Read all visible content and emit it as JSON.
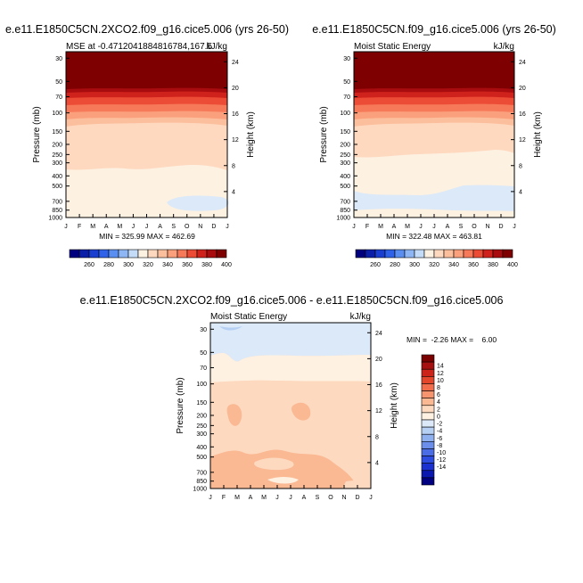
{
  "chart_data": [
    {
      "type": "heatmap",
      "title": "e.e11.E1850C5CN.2XCO2.f09_g16.cice5.006 (yrs 26-50)",
      "subtitle_left": "MSE at -0.4712041884816784,167.5",
      "subtitle_right": "kJ/kg",
      "ylabel": "Pressure (mb)",
      "ylabel_right": "Height (km)",
      "x_ticks": [
        "J",
        "F",
        "M",
        "A",
        "M",
        "J",
        "J",
        "A",
        "S",
        "O",
        "N",
        "D",
        "J"
      ],
      "y_ticks": [
        "30",
        "50",
        "70",
        "100",
        "150",
        "200",
        "250",
        "300",
        "400",
        "500",
        "700",
        "850",
        "1000"
      ],
      "height_ticks": [
        "24",
        "20",
        "16",
        "12",
        "8",
        "4"
      ],
      "stats": "MIN = 325.99  MAX = 462.69",
      "min": 325.99,
      "max": 462.69,
      "colorbar_labels": [
        "260",
        "280",
        "300",
        "320",
        "340",
        "360",
        "380",
        "400"
      ]
    },
    {
      "type": "heatmap",
      "title": "e.e11.E1850C5CN.f09_g16.cice5.006 (yrs 26-50)",
      "subtitle_left": "Moist Static Energy",
      "subtitle_right": "kJ/kg",
      "ylabel": "Pressure (mb)",
      "ylabel_right": "Height (km)",
      "x_ticks": [
        "J",
        "F",
        "M",
        "A",
        "M",
        "J",
        "J",
        "A",
        "S",
        "O",
        "N",
        "D",
        "J"
      ],
      "y_ticks": [
        "30",
        "50",
        "70",
        "100",
        "150",
        "200",
        "250",
        "300",
        "400",
        "500",
        "700",
        "850",
        "1000"
      ],
      "height_ticks": [
        "24",
        "20",
        "16",
        "12",
        "8",
        "4"
      ],
      "stats": "MIN = 322.48  MAX = 463.81",
      "min": 322.48,
      "max": 463.81,
      "colorbar_labels": [
        "260",
        "280",
        "300",
        "320",
        "340",
        "360",
        "380",
        "400"
      ]
    },
    {
      "type": "heatmap",
      "title": "e.e11.E1850C5CN.2XCO2.f09_g16.cice5.006 - e.e11.E1850C5CN.f09_g16.cice5.006",
      "subtitle_left": "Moist Static Energy",
      "subtitle_right": "kJ/kg",
      "ylabel": "Pressure (mb)",
      "ylabel_right": "Height (km)",
      "x_ticks": [
        "J",
        "F",
        "M",
        "A",
        "M",
        "J",
        "J",
        "A",
        "S",
        "O",
        "N",
        "D",
        "J"
      ],
      "y_ticks": [
        "30",
        "50",
        "70",
        "100",
        "150",
        "200",
        "250",
        "300",
        "400",
        "500",
        "700",
        "850",
        "1000"
      ],
      "height_ticks": [
        "24",
        "20",
        "16",
        "12",
        "8",
        "4"
      ],
      "stats": "MIN =  -2.26 MAX =    6.00",
      "min": -2.26,
      "max": 6.0,
      "colorbar_labels": [
        "14",
        "12",
        "10",
        "8",
        "6",
        "4",
        "2",
        "0",
        "-2",
        "-4",
        "-6",
        "-8",
        "-10",
        "-12",
        "-14"
      ]
    }
  ],
  "colors": {
    "seq_scale": [
      "#00007f",
      "#0a1ea8",
      "#1a3fd0",
      "#2f62e8",
      "#5a8ef0",
      "#8fb6f4",
      "#c4dcf8",
      "#fdf1e2",
      "#fed9c0",
      "#fcbf9d",
      "#fba07c",
      "#f6795a",
      "#ec4c35",
      "#d0221c",
      "#a90c0f",
      "#7f0000"
    ],
    "diff_scale": [
      "#7a0000",
      "#a60f0f",
      "#cc2418",
      "#e4462c",
      "#f26d4c",
      "#f6946f",
      "#fab893",
      "#fdd9bf",
      "#fef1e2",
      "#dbe9f8",
      "#b6d0f3",
      "#8fb0ee",
      "#6a8eea",
      "#4a6de6",
      "#2c4de0",
      "#1a30cf",
      "#0b18b0",
      "#000080"
    ]
  }
}
